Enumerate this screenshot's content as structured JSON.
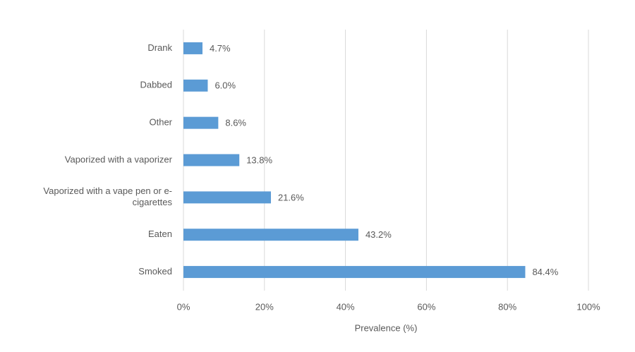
{
  "chart_data": {
    "type": "bar",
    "orientation": "horizontal",
    "categories": [
      "Drank",
      "Dabbed",
      "Other",
      "Vaporized with a vaporizer",
      "Vaporized with a vape pen or e-cigarettes",
      "Eaten",
      "Smoked"
    ],
    "values": [
      4.7,
      6.0,
      8.6,
      13.8,
      21.6,
      43.2,
      84.4
    ],
    "value_labels": [
      "4.7%",
      "6.0%",
      "8.6%",
      "13.8%",
      "21.6%",
      "43.2%",
      "84.4%"
    ],
    "color": "#5b9bd5",
    "xlabel": "Prevalence (%)",
    "xlim": [
      0,
      100
    ],
    "xticks": [
      {
        "value": 0,
        "label": "0%"
      },
      {
        "value": 20,
        "label": "20%"
      },
      {
        "value": 40,
        "label": "40%"
      },
      {
        "value": 60,
        "label": "60%"
      },
      {
        "value": 80,
        "label": "80%"
      },
      {
        "value": 100,
        "label": "100%"
      }
    ],
    "grid": true
  }
}
